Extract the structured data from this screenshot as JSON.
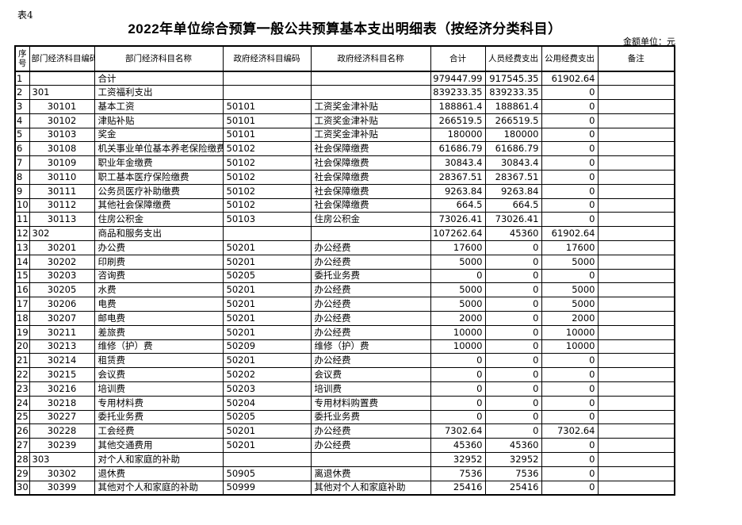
{
  "header": {
    "corner_label": "表4",
    "title": "2022年单位综合预算一般公共预算基本支出明细表（按经济分类科目）",
    "unit_label": "金额单位：元"
  },
  "table": {
    "columns": [
      "序号",
      "部门经济科目编码",
      "部门经济科目名称",
      "政府经济科目编码",
      "政府经济科目名称",
      "合计",
      "人员经费支出",
      "公用经费支出",
      "备注"
    ],
    "rows": [
      [
        "1",
        "",
        "合计",
        "",
        "",
        "979447.99",
        "917545.35",
        "61902.64",
        ""
      ],
      [
        "2",
        "301",
        "工资福利支出",
        "",
        "",
        "839233.35",
        "839233.35",
        "0",
        ""
      ],
      [
        "3",
        "30101",
        "基本工资",
        "50101",
        "工资奖金津补贴",
        "188861.4",
        "188861.4",
        "0",
        ""
      ],
      [
        "4",
        "30102",
        "津贴补贴",
        "50101",
        "工资奖金津补贴",
        "266519.5",
        "266519.5",
        "0",
        ""
      ],
      [
        "5",
        "30103",
        "奖金",
        "50101",
        "工资奖金津补贴",
        "180000",
        "180000",
        "0",
        ""
      ],
      [
        "6",
        "30108",
        "机关事业单位基本养老保险缴费",
        "50102",
        "社会保障缴费",
        "61686.79",
        "61686.79",
        "0",
        ""
      ],
      [
        "7",
        "30109",
        "职业年金缴费",
        "50102",
        "社会保障缴费",
        "30843.4",
        "30843.4",
        "0",
        ""
      ],
      [
        "8",
        "30110",
        "职工基本医疗保险缴费",
        "50102",
        "社会保障缴费",
        "28367.51",
        "28367.51",
        "0",
        ""
      ],
      [
        "9",
        "30111",
        "公务员医疗补助缴费",
        "50102",
        "社会保障缴费",
        "9263.84",
        "9263.84",
        "0",
        ""
      ],
      [
        "10",
        "30112",
        "其他社会保障缴费",
        "50102",
        "社会保障缴费",
        "664.5",
        "664.5",
        "0",
        ""
      ],
      [
        "11",
        "30113",
        "住房公积金",
        "50103",
        "住房公积金",
        "73026.41",
        "73026.41",
        "0",
        ""
      ],
      [
        "12",
        "302",
        "商品和服务支出",
        "",
        "",
        "107262.64",
        "45360",
        "61902.64",
        ""
      ],
      [
        "13",
        "30201",
        "办公费",
        "50201",
        "办公经费",
        "17600",
        "0",
        "17600",
        ""
      ],
      [
        "14",
        "30202",
        "印刷费",
        "50201",
        "办公经费",
        "5000",
        "0",
        "5000",
        ""
      ],
      [
        "15",
        "30203",
        "咨询费",
        "50205",
        "委托业务费",
        "0",
        "0",
        "0",
        ""
      ],
      [
        "16",
        "30205",
        "水费",
        "50201",
        "办公经费",
        "5000",
        "0",
        "5000",
        ""
      ],
      [
        "17",
        "30206",
        "电费",
        "50201",
        "办公经费",
        "5000",
        "0",
        "5000",
        ""
      ],
      [
        "18",
        "30207",
        "邮电费",
        "50201",
        "办公经费",
        "2000",
        "0",
        "2000",
        ""
      ],
      [
        "19",
        "30211",
        "差旅费",
        "50201",
        "办公经费",
        "10000",
        "0",
        "10000",
        ""
      ],
      [
        "20",
        "30213",
        "维修（护）费",
        "50209",
        "维修（护）费",
        "10000",
        "0",
        "10000",
        ""
      ],
      [
        "21",
        "30214",
        "租赁费",
        "50201",
        "办公经费",
        "0",
        "0",
        "0",
        ""
      ],
      [
        "22",
        "30215",
        "会议费",
        "50202",
        "会议费",
        "0",
        "0",
        "0",
        ""
      ],
      [
        "23",
        "30216",
        "培训费",
        "50203",
        "培训费",
        "0",
        "0",
        "0",
        ""
      ],
      [
        "24",
        "30218",
        "专用材料费",
        "50204",
        "专用材料购置费",
        "0",
        "0",
        "0",
        ""
      ],
      [
        "25",
        "30227",
        "委托业务费",
        "50205",
        "委托业务费",
        "0",
        "0",
        "0",
        ""
      ],
      [
        "26",
        "30228",
        "工会经费",
        "50201",
        "办公经费",
        "7302.64",
        "0",
        "7302.64",
        ""
      ],
      [
        "27",
        "30239",
        "其他交通费用",
        "50201",
        "办公经费",
        "45360",
        "45360",
        "0",
        ""
      ],
      [
        "28",
        "303",
        "对个人和家庭的补助",
        "",
        "",
        "32952",
        "32952",
        "0",
        ""
      ],
      [
        "29",
        "30302",
        "退休费",
        "50905",
        "离退休费",
        "7536",
        "7536",
        "0",
        ""
      ],
      [
        "30",
        "30399",
        "其他对个人和家庭的补助",
        "50999",
        "其他对个人和家庭补助",
        "25416",
        "25416",
        "0",
        ""
      ]
    ]
  }
}
